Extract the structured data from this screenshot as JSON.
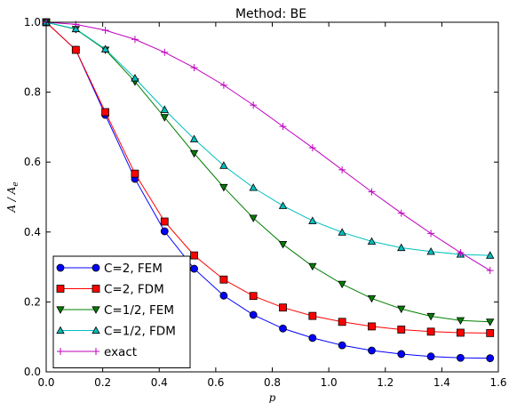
{
  "chart_data": {
    "type": "line",
    "title": "Method: BE",
    "xlabel": "p",
    "ylabel": "A / A",
    "ylabel_sub": "e",
    "xlim": [
      0.0,
      1.6
    ],
    "ylim": [
      0.0,
      1.0
    ],
    "xticks": [
      "0.0",
      "0.2",
      "0.4",
      "0.6",
      "0.8",
      "1.0",
      "1.2",
      "1.4",
      "1.6"
    ],
    "yticks": [
      "0.0",
      "0.2",
      "0.4",
      "0.6",
      "0.8",
      "1.0"
    ],
    "grid": false,
    "legend_position": "lower-left",
    "series": [
      {
        "name": "C=2, FEM",
        "color": "#0000ff",
        "marker": "circle",
        "x": [
          0.0,
          0.1047,
          0.2094,
          0.3142,
          0.4189,
          0.5236,
          0.6283,
          0.733,
          0.8378,
          0.9425,
          1.0472,
          1.1519,
          1.2566,
          1.3614,
          1.4661,
          1.5708
        ],
        "y": [
          1.0,
          0.921,
          0.735,
          0.552,
          0.402,
          0.295,
          0.218,
          0.163,
          0.124,
          0.097,
          0.076,
          0.061,
          0.051,
          0.044,
          0.04,
          0.039
        ]
      },
      {
        "name": "C=2, FDM",
        "color": "#ff0000",
        "marker": "square",
        "x": [
          0.0,
          0.1047,
          0.2094,
          0.3142,
          0.4189,
          0.5236,
          0.6283,
          0.733,
          0.8378,
          0.9425,
          1.0472,
          1.1519,
          1.2566,
          1.3614,
          1.4661,
          1.5708
        ],
        "y": [
          1.0,
          0.921,
          0.743,
          0.567,
          0.43,
          0.333,
          0.264,
          0.217,
          0.184,
          0.16,
          0.143,
          0.13,
          0.121,
          0.115,
          0.112,
          0.111
        ]
      },
      {
        "name": "C=1/2, FEM",
        "color": "#008000",
        "marker": "triangle-down",
        "x": [
          0.0,
          0.1047,
          0.2094,
          0.3142,
          0.4189,
          0.5236,
          0.6283,
          0.733,
          0.8378,
          0.9425,
          1.0472,
          1.1519,
          1.2566,
          1.3614,
          1.4661,
          1.5708
        ],
        "y": [
          1.0,
          0.98,
          0.921,
          0.83,
          0.728,
          0.625,
          0.528,
          0.44,
          0.365,
          0.302,
          0.251,
          0.21,
          0.18,
          0.159,
          0.147,
          0.143
        ]
      },
      {
        "name": "C=1/2, FDM",
        "color": "#00bfbf",
        "marker": "triangle-up",
        "x": [
          0.0,
          0.1047,
          0.2094,
          0.3142,
          0.4189,
          0.5236,
          0.6283,
          0.733,
          0.8378,
          0.9425,
          1.0472,
          1.1519,
          1.2566,
          1.3614,
          1.4661,
          1.5708
        ],
        "y": [
          1.0,
          0.981,
          0.923,
          0.84,
          0.75,
          0.666,
          0.59,
          0.527,
          0.475,
          0.432,
          0.399,
          0.373,
          0.355,
          0.344,
          0.336,
          0.333
        ]
      },
      {
        "name": "exact",
        "color": "#bf00bf",
        "marker": "plus",
        "x": [
          0.0,
          0.1047,
          0.2094,
          0.3142,
          0.4189,
          0.5236,
          0.6283,
          0.733,
          0.8378,
          0.9425,
          1.0472,
          1.1519,
          1.2566,
          1.3614,
          1.4661,
          1.5708
        ],
        "y": [
          1.0,
          0.994,
          0.977,
          0.951,
          0.914,
          0.87,
          0.82,
          0.763,
          0.702,
          0.641,
          0.578,
          0.515,
          0.454,
          0.396,
          0.341,
          0.29
        ]
      }
    ]
  }
}
